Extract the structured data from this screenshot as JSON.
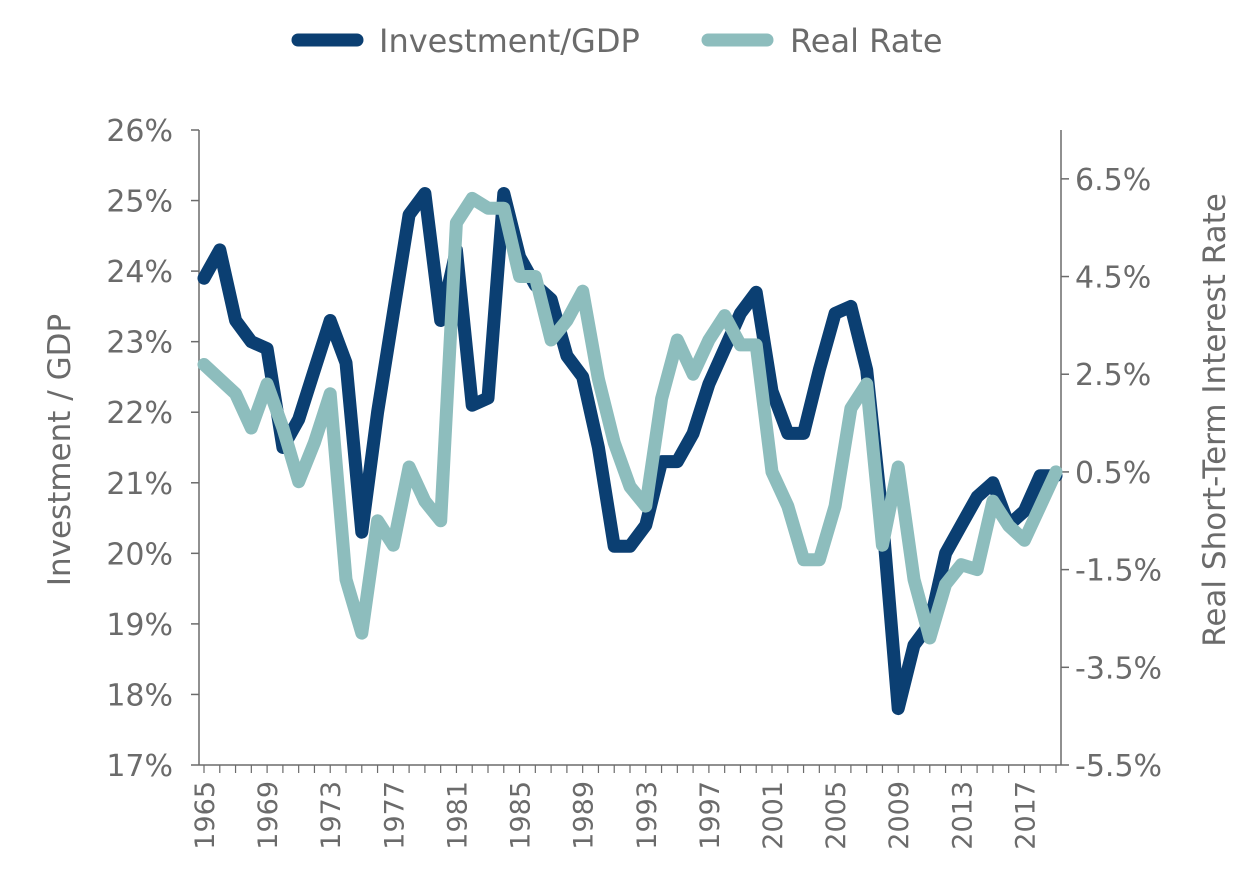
{
  "chart_data": {
    "type": "line",
    "x": [
      1965,
      1966,
      1967,
      1968,
      1969,
      1970,
      1971,
      1972,
      1973,
      1974,
      1975,
      1976,
      1977,
      1978,
      1979,
      1980,
      1981,
      1982,
      1983,
      1984,
      1985,
      1986,
      1987,
      1988,
      1989,
      1990,
      1991,
      1992,
      1993,
      1994,
      1995,
      1996,
      1997,
      1998,
      1999,
      2000,
      2001,
      2002,
      2003,
      2004,
      2005,
      2006,
      2007,
      2008,
      2009,
      2010,
      2011,
      2012,
      2013,
      2014,
      2015,
      2016,
      2017,
      2018,
      2019
    ],
    "x_tick_labels": [
      "1965",
      "1969",
      "1973",
      "1977",
      "1981",
      "1985",
      "1989",
      "1993",
      "1997",
      "2001",
      "2005",
      "2009",
      "2013",
      "2017"
    ],
    "series": [
      {
        "name": "Investment/GDP",
        "axis": "left",
        "color": "#0b3f72",
        "values": [
          23.9,
          24.3,
          23.3,
          23.0,
          22.9,
          21.5,
          21.9,
          22.6,
          23.3,
          22.7,
          20.3,
          22.0,
          23.4,
          24.8,
          25.1,
          23.3,
          24.3,
          22.1,
          22.2,
          25.1,
          24.2,
          23.8,
          23.6,
          22.8,
          22.5,
          21.5,
          20.1,
          20.1,
          20.4,
          21.3,
          21.3,
          21.7,
          22.4,
          22.9,
          23.4,
          23.7,
          22.3,
          21.7,
          21.7,
          22.6,
          23.4,
          23.5,
          22.6,
          20.5,
          17.8,
          18.7,
          19.0,
          20.0,
          20.4,
          20.8,
          21.0,
          20.4,
          20.6,
          21.1,
          21.1
        ]
      },
      {
        "name": "Real Rate",
        "axis": "right",
        "color": "#8dbdbd",
        "values": [
          2.7,
          2.4,
          2.1,
          1.4,
          2.3,
          1.4,
          0.3,
          1.1,
          2.1,
          -1.7,
          -2.8,
          -0.5,
          -1.0,
          0.6,
          -0.1,
          -0.5,
          5.6,
          6.1,
          5.9,
          5.9,
          4.5,
          4.5,
          3.2,
          3.6,
          4.2,
          2.4,
          1.1,
          0.2,
          -0.2,
          2.0,
          3.2,
          2.5,
          3.2,
          3.7,
          3.1,
          3.1,
          0.5,
          -0.2,
          -1.3,
          -1.3,
          -0.2,
          1.8,
          2.3,
          -1.0,
          0.6,
          -1.7,
          -2.9,
          -1.8,
          -1.4,
          -1.5,
          -0.1,
          -0.6,
          -0.9,
          -0.2,
          0.5
        ]
      }
    ],
    "left_axis": {
      "label": "Investment / GDP",
      "min": 17,
      "max": 26,
      "step": 1,
      "tick_labels": [
        "17%",
        "18%",
        "19%",
        "20%",
        "21%",
        "22%",
        "23%",
        "24%",
        "25%",
        "26%"
      ]
    },
    "right_axis": {
      "label": "Real Short-Term Interest Rate",
      "min": -5.5,
      "max": 7.5,
      "ticks": [
        -5.5,
        -3.5,
        -1.5,
        0.5,
        2.5,
        4.5,
        6.5
      ],
      "tick_labels": [
        "-5.5%",
        "-3.5%",
        "-1.5%",
        "0.5%",
        "2.5%",
        "4.5%",
        "6.5%"
      ]
    },
    "legend": {
      "position": "top-center",
      "entries": [
        "Investment/GDP",
        "Real Rate"
      ]
    },
    "grid": false
  }
}
